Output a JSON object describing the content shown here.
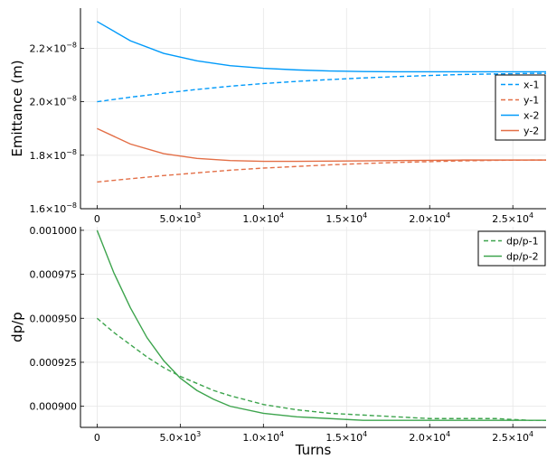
{
  "chart_data": [
    {
      "type": "line",
      "title": "",
      "xlabel": "",
      "ylabel": "Emittance (m)",
      "xlim": [
        -1000,
        27000
      ],
      "ylim": [
        1.6e-08,
        2.35e-08
      ],
      "xticks": [
        0,
        5000,
        10000,
        15000,
        20000,
        25000
      ],
      "xtick_labels": [
        {
          "mant": "0",
          "exp": ""
        },
        {
          "mant": "5.0×10",
          "exp": "3"
        },
        {
          "mant": "1.0×10",
          "exp": "4"
        },
        {
          "mant": "1.5×10",
          "exp": "4"
        },
        {
          "mant": "2.0×10",
          "exp": "4"
        },
        {
          "mant": "2.5×10",
          "exp": "4"
        }
      ],
      "yticks": [
        1.6e-08,
        1.8e-08,
        2e-08,
        2.2e-08
      ],
      "ytick_labels": [
        {
          "mant": "1.6×10",
          "exp": "−8"
        },
        {
          "mant": "1.8×10",
          "exp": "−8"
        },
        {
          "mant": "2.0×10",
          "exp": "−8"
        },
        {
          "mant": "2.2×10",
          "exp": "−8"
        }
      ],
      "grid": true,
      "legend_position": "right",
      "x": [
        0,
        2000,
        4000,
        6000,
        8000,
        10000,
        12000,
        14000,
        16000,
        18000,
        20000,
        22000,
        24000,
        26000,
        27000
      ],
      "series": [
        {
          "name": "x-1",
          "color": "#009AFA",
          "dash": "dashed",
          "values": [
            2e-08,
            2.017e-08,
            2.032e-08,
            2.046e-08,
            2.058e-08,
            2.068e-08,
            2.076e-08,
            2.083e-08,
            2.089e-08,
            2.094e-08,
            2.098e-08,
            2.102e-08,
            2.104e-08,
            2.106e-08,
            2.106e-08
          ]
        },
        {
          "name": "y-1",
          "color": "#E36F47",
          "dash": "dashed",
          "values": [
            1.7e-08,
            1.712e-08,
            1.724e-08,
            1.734e-08,
            1.744e-08,
            1.752e-08,
            1.758e-08,
            1.764e-08,
            1.769e-08,
            1.773e-08,
            1.776e-08,
            1.779e-08,
            1.781e-08,
            1.782e-08,
            1.782e-08
          ]
        },
        {
          "name": "x-2",
          "color": "#009AFA",
          "dash": "solid",
          "values": [
            2.3e-08,
            2.228e-08,
            2.181e-08,
            2.153e-08,
            2.135e-08,
            2.125e-08,
            2.119e-08,
            2.115e-08,
            2.113e-08,
            2.112e-08,
            2.112e-08,
            2.112e-08,
            2.112e-08,
            2.112e-08,
            2.112e-08
          ]
        },
        {
          "name": "y-2",
          "color": "#E36F47",
          "dash": "solid",
          "values": [
            1.9e-08,
            1.842e-08,
            1.806e-08,
            1.788e-08,
            1.78e-08,
            1.777e-08,
            1.777e-08,
            1.778e-08,
            1.779e-08,
            1.78e-08,
            1.781e-08,
            1.782e-08,
            1.782e-08,
            1.782e-08,
            1.782e-08
          ]
        }
      ]
    },
    {
      "type": "line",
      "title": "",
      "xlabel": "Turns",
      "ylabel": "dp/p",
      "xlim": [
        -1000,
        27000
      ],
      "ylim": [
        0.000888,
        0.001002
      ],
      "xticks": [
        0,
        5000,
        10000,
        15000,
        20000,
        25000
      ],
      "xtick_labels": [
        {
          "mant": "0",
          "exp": ""
        },
        {
          "mant": "5.0×10",
          "exp": "3"
        },
        {
          "mant": "1.0×10",
          "exp": "4"
        },
        {
          "mant": "1.5×10",
          "exp": "4"
        },
        {
          "mant": "2.0×10",
          "exp": "4"
        },
        {
          "mant": "2.5×10",
          "exp": "4"
        }
      ],
      "yticks": [
        0.0009,
        0.000925,
        0.00095,
        0.000975,
        0.001
      ],
      "ytick_labels": [
        {
          "mant": "0.000900",
          "exp": ""
        },
        {
          "mant": "0.000925",
          "exp": ""
        },
        {
          "mant": "0.000950",
          "exp": ""
        },
        {
          "mant": "0.000975",
          "exp": ""
        },
        {
          "mant": "0.001000",
          "exp": ""
        }
      ],
      "grid": true,
      "legend_position": "top-right",
      "x": [
        0,
        1000,
        2000,
        3000,
        4000,
        5000,
        6000,
        7000,
        8000,
        10000,
        12000,
        14000,
        16000,
        18000,
        20000,
        22000,
        24000,
        26000,
        27000
      ],
      "series": [
        {
          "name": "dp/p-1",
          "color": "#3DA44D",
          "dash": "dashed",
          "values": [
            0.00095,
            0.000942,
            0.000935,
            0.000928,
            0.000922,
            0.000917,
            0.000913,
            0.000909,
            0.000906,
            0.000901,
            0.000898,
            0.000896,
            0.000895,
            0.000894,
            0.000893,
            0.000893,
            0.000893,
            0.000892,
            0.000892
          ]
        },
        {
          "name": "dp/p-2",
          "color": "#3DA44D",
          "dash": "solid",
          "values": [
            0.001,
            0.000976,
            0.000956,
            0.000939,
            0.000926,
            0.000916,
            0.000909,
            0.000904,
            0.0009,
            0.000896,
            0.000894,
            0.000893,
            0.000892,
            0.000892,
            0.000892,
            0.000892,
            0.000892,
            0.000892,
            0.000892
          ]
        }
      ]
    }
  ]
}
